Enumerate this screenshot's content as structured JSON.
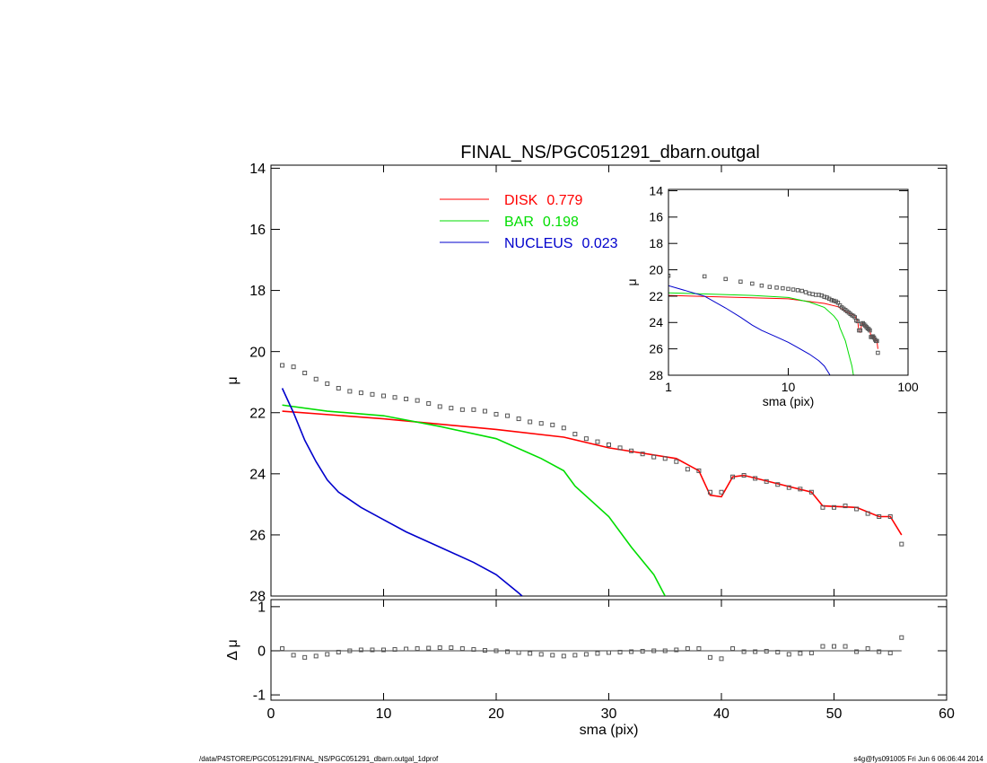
{
  "chart_data": [
    {
      "type": "line",
      "title": "FINAL_NS/PGC051291_dbarn.outgal",
      "ylabel": "μ",
      "xlim": [
        0,
        60
      ],
      "xticks": [
        0,
        10,
        20,
        30,
        40,
        50,
        60
      ],
      "ylim": [
        13.9,
        28
      ],
      "yticks": [
        14,
        16,
        18,
        20,
        22,
        24,
        26,
        28
      ],
      "y_inverted": true,
      "profile": {
        "marker": "square",
        "color": "#555555",
        "x": [
          1,
          2,
          3,
          4,
          5,
          6,
          7,
          8,
          9,
          10,
          11,
          12,
          13,
          14,
          15,
          16,
          17,
          18,
          19,
          20,
          21,
          22,
          23,
          24,
          25,
          26,
          27,
          28,
          29,
          30,
          31,
          32,
          33,
          34,
          35,
          36,
          37,
          38,
          39,
          40,
          41,
          42,
          43,
          44,
          45,
          46,
          47,
          48,
          49,
          50,
          51,
          52,
          53,
          54,
          55,
          56
        ],
        "values": [
          20.45,
          20.5,
          20.7,
          20.9,
          21.05,
          21.2,
          21.3,
          21.35,
          21.4,
          21.45,
          21.5,
          21.55,
          21.6,
          21.7,
          21.8,
          21.85,
          21.9,
          21.9,
          21.95,
          22.05,
          22.1,
          22.2,
          22.3,
          22.35,
          22.4,
          22.5,
          22.7,
          22.85,
          22.95,
          23.05,
          23.15,
          23.25,
          23.35,
          23.45,
          23.5,
          23.6,
          23.85,
          23.9,
          24.6,
          24.6,
          24.1,
          24.05,
          24.15,
          24.25,
          24.35,
          24.45,
          24.5,
          24.6,
          25.1,
          25.1,
          25.05,
          25.15,
          25.3,
          25.4,
          25.4,
          26.3
        ]
      },
      "series": [
        {
          "name": "DISK",
          "fraction": 0.779,
          "color": "#ff0000",
          "x": [
            1,
            10,
            20,
            26,
            30,
            36,
            38,
            39,
            40,
            41,
            42,
            48,
            49,
            52,
            54,
            55,
            56
          ],
          "values": [
            21.95,
            22.2,
            22.55,
            22.8,
            23.15,
            23.5,
            23.9,
            24.7,
            24.75,
            24.1,
            24.05,
            24.6,
            25.05,
            25.1,
            25.4,
            25.4,
            26.0
          ]
        },
        {
          "name": "BAR",
          "fraction": 0.198,
          "color": "#00dd00",
          "x": [
            1,
            5,
            10,
            15,
            20,
            24,
            26,
            27,
            30,
            32,
            34,
            35
          ],
          "values": [
            21.75,
            21.95,
            22.1,
            22.45,
            22.85,
            23.5,
            23.9,
            24.4,
            25.4,
            26.4,
            27.3,
            28
          ]
        },
        {
          "name": "NUCLEUS",
          "fraction": 0.023,
          "color": "#0000cc",
          "x": [
            1,
            2,
            3,
            4,
            5,
            6,
            8,
            10,
            12,
            15,
            18,
            20,
            22,
            22.3
          ],
          "values": [
            21.2,
            22,
            22.9,
            23.6,
            24.2,
            24.6,
            25.1,
            25.5,
            25.9,
            26.4,
            26.9,
            27.3,
            27.9,
            28
          ]
        }
      ]
    },
    {
      "type": "scatter",
      "ylabel": "Δ μ",
      "xlabel": "sma (pix)",
      "xlim": [
        0,
        60
      ],
      "xticks": [
        0,
        10,
        20,
        30,
        40,
        50,
        60
      ],
      "ylim": [
        -1.12,
        1.16
      ],
      "yticks": [
        -1,
        0,
        1
      ],
      "x": [
        1,
        2,
        3,
        4,
        5,
        6,
        7,
        8,
        9,
        10,
        11,
        12,
        13,
        14,
        15,
        16,
        17,
        18,
        19,
        20,
        21,
        22,
        23,
        24,
        25,
        26,
        27,
        28,
        29,
        30,
        31,
        32,
        33,
        34,
        35,
        36,
        37,
        38,
        39,
        40,
        41,
        42,
        43,
        44,
        45,
        46,
        47,
        48,
        49,
        50,
        51,
        52,
        53,
        54,
        55,
        56
      ],
      "values": [
        0.05,
        -0.1,
        -0.15,
        -0.12,
        -0.08,
        -0.03,
        0,
        0.02,
        0.02,
        0.02,
        0.03,
        0.04,
        0.05,
        0.06,
        0.07,
        0.07,
        0.05,
        0.03,
        0.01,
        0,
        -0.02,
        -0.04,
        -0.06,
        -0.08,
        -0.1,
        -0.12,
        -0.1,
        -0.08,
        -0.06,
        -0.04,
        -0.03,
        -0.02,
        -0.01,
        0,
        0,
        0.02,
        0.05,
        0.05,
        -0.15,
        -0.18,
        0.05,
        -0.02,
        -0.02,
        -0.01,
        -0.03,
        -0.08,
        -0.06,
        -0.05,
        0.1,
        0.1,
        0.1,
        -0.02,
        0.05,
        -0.02,
        -0.05,
        0.3
      ]
    },
    {
      "type": "inset",
      "ylabel": "μ",
      "xlabel": "sma (pix)",
      "xscale": "log",
      "xlim": [
        1,
        100
      ],
      "xticks": [
        1,
        10,
        100
      ],
      "ylim": [
        13.9,
        28
      ],
      "yticks": [
        14,
        16,
        18,
        20,
        22,
        24,
        26,
        28
      ],
      "y_inverted": true
    }
  ],
  "footer": {
    "left": "/data/P4STORE/PGC051291/FINAL_NS/PGC051291_dbarn.outgal_1dprof",
    "right": "s4g@fys091005  Fri Jun  6 06:06:44 2014"
  }
}
